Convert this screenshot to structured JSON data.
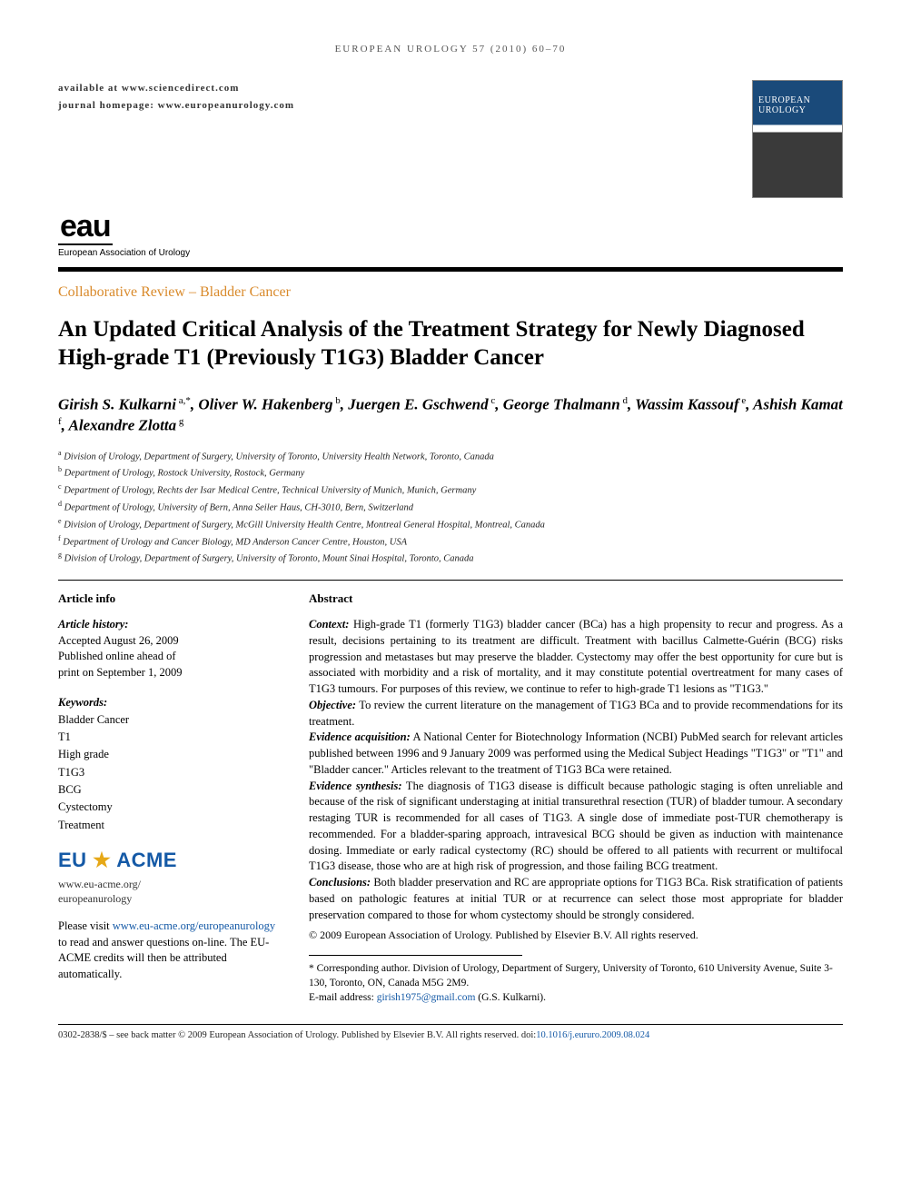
{
  "running_head": "EUROPEAN UROLOGY 57 (2010) 60–70",
  "availability": {
    "line1": "available at www.sciencedirect.com",
    "line2": "journal homepage: www.europeanurology.com"
  },
  "cover": {
    "journal_name": "EUROPEAN UROLOGY"
  },
  "publisher_logo": {
    "mark": "eau",
    "subtitle": "European Association of Urology"
  },
  "section_label": "Collaborative Review – Bladder Cancer",
  "title": "An Updated Critical Analysis of the Treatment Strategy for Newly Diagnosed High-grade T1 (Previously T1G3) Bladder Cancer",
  "authors_html": "Girish S. Kulkarni<span class='sup'> a,*</span>, Oliver W. Hakenberg<span class='sup'> b</span>, Juergen E. Gschwend<span class='sup'> c</span>, George Thalmann<span class='sup'> d</span>, Wassim Kassouf<span class='sup'> e</span>, Ashish Kamat<span class='sup'> f</span>, Alexandre Zlotta<span class='sup'> g</span>",
  "affiliations": [
    {
      "key": "a",
      "text": "Division of Urology, Department of Surgery, University of Toronto, University Health Network, Toronto, Canada"
    },
    {
      "key": "b",
      "text": "Department of Urology, Rostock University, Rostock, Germany"
    },
    {
      "key": "c",
      "text": "Department of Urology, Rechts der Isar Medical Centre, Technical University of Munich, Munich, Germany"
    },
    {
      "key": "d",
      "text": "Department of Urology, University of Bern, Anna Seiler Haus, CH-3010, Bern, Switzerland"
    },
    {
      "key": "e",
      "text": "Division of Urology, Department of Surgery, McGill University Health Centre, Montreal General Hospital, Montreal, Canada"
    },
    {
      "key": "f",
      "text": "Department of Urology and Cancer Biology, MD Anderson Cancer Centre, Houston, USA"
    },
    {
      "key": "g",
      "text": "Division of Urology, Department of Surgery, University of Toronto, Mount Sinai Hospital, Toronto, Canada"
    }
  ],
  "article_info": {
    "heading": "Article info",
    "history_label": "Article history:",
    "history_lines": [
      "Accepted August 26, 2009",
      "Published online ahead of",
      "print on September 1, 2009"
    ],
    "keywords_label": "Keywords:",
    "keywords": [
      "Bladder Cancer",
      "T1",
      "High grade",
      "T1G3",
      "BCG",
      "Cystectomy",
      "Treatment"
    ]
  },
  "acme": {
    "badge_left": "EU",
    "badge_right": "ACME",
    "url_line1": "www.eu-acme.org/",
    "url_line2": "europeanurology",
    "blurb_prefix": "Please visit ",
    "blurb_link": "www.eu-acme.org/europeanurology",
    "blurb_suffix": " to read and answer questions on-line. The EU-ACME credits will then be attributed automatically."
  },
  "abstract": {
    "heading": "Abstract",
    "sections": [
      {
        "label": "Context:",
        "text": " High-grade T1 (formerly T1G3) bladder cancer (BCa) has a high propensity to recur and progress. As a result, decisions pertaining to its treatment are difficult. Treatment with bacillus Calmette-Guérin (BCG) risks progression and metastases but may preserve the bladder. Cystectomy may offer the best opportunity for cure but is associated with morbidity and a risk of mortality, and it may constitute potential overtreatment for many cases of T1G3 tumours. For purposes of this review, we continue to refer to high-grade T1 lesions as \"T1G3.\""
      },
      {
        "label": "Objective:",
        "text": " To review the current literature on the management of T1G3 BCa and to provide recommendations for its treatment."
      },
      {
        "label": "Evidence acquisition:",
        "text": " A National Center for Biotechnology Information (NCBI) PubMed search for relevant articles published between 1996 and 9 January 2009 was performed using the Medical Subject Headings \"T1G3\" or \"T1\" and \"Bladder cancer.\" Articles relevant to the treatment of T1G3 BCa were retained."
      },
      {
        "label": "Evidence synthesis:",
        "text": " The diagnosis of T1G3 disease is difficult because pathologic staging is often unreliable and because of the risk of significant understaging at initial transurethral resection (TUR) of bladder tumour. A secondary restaging TUR is recommended for all cases of T1G3. A single dose of immediate post-TUR chemotherapy is recommended. For a bladder-sparing approach, intravesical BCG should be given as induction with maintenance dosing. Immediate or early radical cystectomy (RC) should be offered to all patients with recurrent or multifocal T1G3 disease, those who are at high risk of progression, and those failing BCG treatment."
      },
      {
        "label": "Conclusions:",
        "text": " Both bladder preservation and RC are appropriate options for T1G3 BCa. Risk stratification of patients based on pathologic features at initial TUR or at recurrence can select those most appropriate for bladder preservation compared to those for whom cystectomy should be strongly considered."
      }
    ],
    "copyright": "© 2009 European Association of Urology. Published by Elsevier B.V. All rights reserved."
  },
  "correspondence": {
    "star": "*",
    "text": " Corresponding author. Division of Urology, Department of Surgery, University of Toronto, 610 University Avenue, Suite 3-130, Toronto, ON, Canada M5G 2M9.",
    "email_label": "E-mail address: ",
    "email": "girish1975@gmail.com",
    "email_suffix": " (G.S. Kulkarni)."
  },
  "footer": {
    "left": "0302-2838/$ – see back matter © 2009 European Association of Urology. Published by Elsevier B.V. All rights reserved.  doi:",
    "doi": "10.1016/j.eururo.2009.08.024"
  },
  "colors": {
    "section_label": "#d98a2b",
    "link": "#1459a6",
    "star": "#e6a817",
    "cover_blue": "#1a4a7a"
  }
}
